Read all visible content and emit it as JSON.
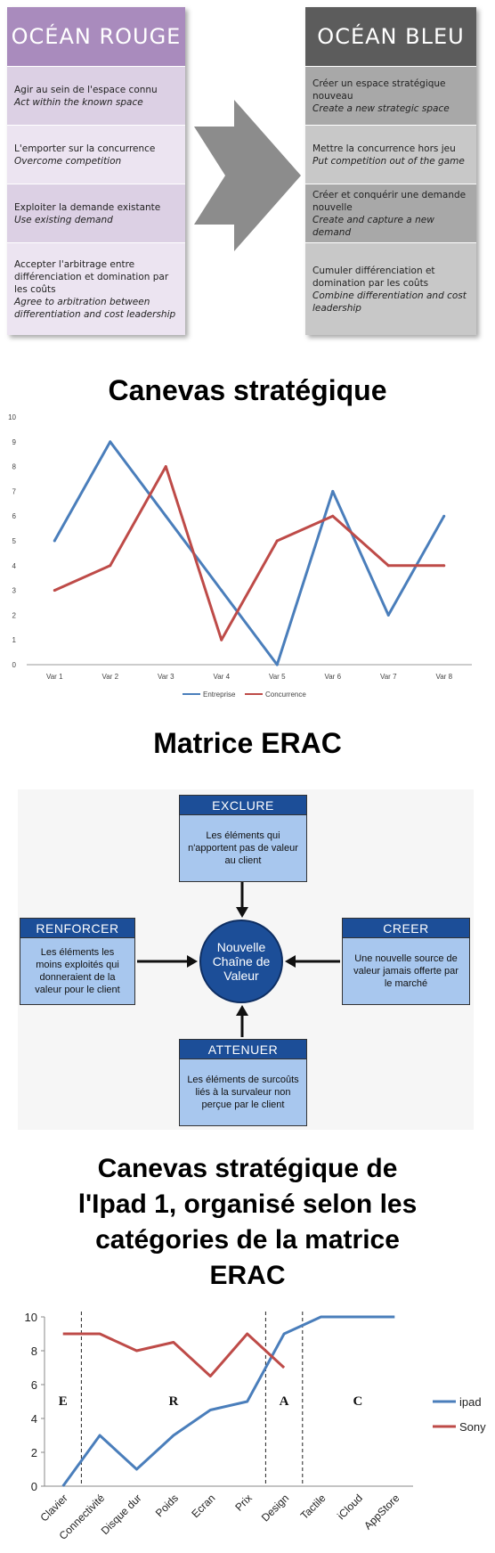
{
  "ocean": {
    "red_title": "OCÉAN ROUGE",
    "blue_title": "OCÉAN BLEU",
    "red_items": [
      {
        "fr": "Agir au sein de l'espace connu",
        "en": "Act within the known space"
      },
      {
        "fr": "L'emporter sur la concurrence",
        "en": "Overcome competition"
      },
      {
        "fr": "Exploiter la demande existante",
        "en": "Use existing demand"
      },
      {
        "fr": "Accepter l'arbitrage entre différenciation et domination par les coûts",
        "en": "Agree to arbitration between differentiation and cost leadership"
      }
    ],
    "blue_items": [
      {
        "fr": "Créer un espace stratégique nouveau",
        "en": "Create a new strategic space"
      },
      {
        "fr": "Mettre la concurrence hors jeu",
        "en": "Put competition out of the game"
      },
      {
        "fr": "Créer et conquérir une demande nouvelle",
        "en": "Create and capture a new demand"
      },
      {
        "fr": "Cumuler différenciation et domination par les coûts",
        "en": "Combine differentiation and cost leadership"
      }
    ],
    "colors": {
      "red_header": "#a98bbd",
      "blue_header": "#5c5c5c",
      "arrow": "#8c8c8c"
    }
  },
  "titles": {
    "canvas": "Canevas stratégique",
    "erac": "Matrice ERAC",
    "ipad": "Canevas stratégique de l'Ipad 1, organisé selon les catégories de la matrice ERAC"
  },
  "erac": {
    "exclure": {
      "title": "EXCLURE",
      "text": "Les éléments qui n'apportent pas de valeur au client"
    },
    "renforcer": {
      "title": "RENFORCER",
      "text": "Les éléments les moins exploités qui donneraient de la valeur pour le client"
    },
    "creer": {
      "title": "CREER",
      "text": "Une nouvelle source de valeur jamais offerte par le marché"
    },
    "attenuer": {
      "title": "ATTENUER",
      "text": "Les éléments de surcoûts liés à la survaleur non perçue par le client"
    },
    "center": "Nouvelle Chaîne de Valeur",
    "colors": {
      "head": "#1c4e98",
      "body": "#a8c7ee"
    }
  },
  "chart_data": [
    {
      "type": "line",
      "categories": [
        "Var 1",
        "Var 2",
        "Var 3",
        "Var 4",
        "Var 5",
        "Var 6",
        "Var 7",
        "Var 8"
      ],
      "series": [
        {
          "name": "Entreprise",
          "color": "#4a7ebb",
          "values": [
            5,
            9,
            6,
            3,
            0,
            7,
            2,
            6
          ]
        },
        {
          "name": "Concurrence",
          "color": "#be4b48",
          "values": [
            3,
            4,
            8,
            1,
            5,
            6,
            4,
            4
          ]
        }
      ],
      "ylim": [
        0,
        10
      ],
      "yticks": [
        0,
        1,
        2,
        3,
        4,
        5,
        6,
        7,
        8,
        9,
        10
      ],
      "grid": false,
      "legend": "bottom"
    },
    {
      "type": "line",
      "categories": [
        "Clavier",
        "Connectivité",
        "Disque dur",
        "Poids",
        "Ecran",
        "Prix",
        "Design",
        "Tactile",
        "iCloud",
        "AppStore"
      ],
      "series": [
        {
          "name": "ipad",
          "color": "#4a7ebb",
          "values": [
            0,
            3,
            1,
            3,
            4.5,
            5,
            9,
            10,
            10,
            10
          ]
        },
        {
          "name": "Sony",
          "color": "#be4b48",
          "values": [
            9,
            9,
            8,
            8.5,
            6.5,
            9,
            7,
            null,
            null,
            null
          ]
        }
      ],
      "ylim": [
        0,
        10
      ],
      "yticks": [
        0,
        2,
        4,
        6,
        8,
        10
      ],
      "zones": [
        "E",
        "R",
        "A",
        "C"
      ],
      "grid": false,
      "legend": "right"
    }
  ]
}
